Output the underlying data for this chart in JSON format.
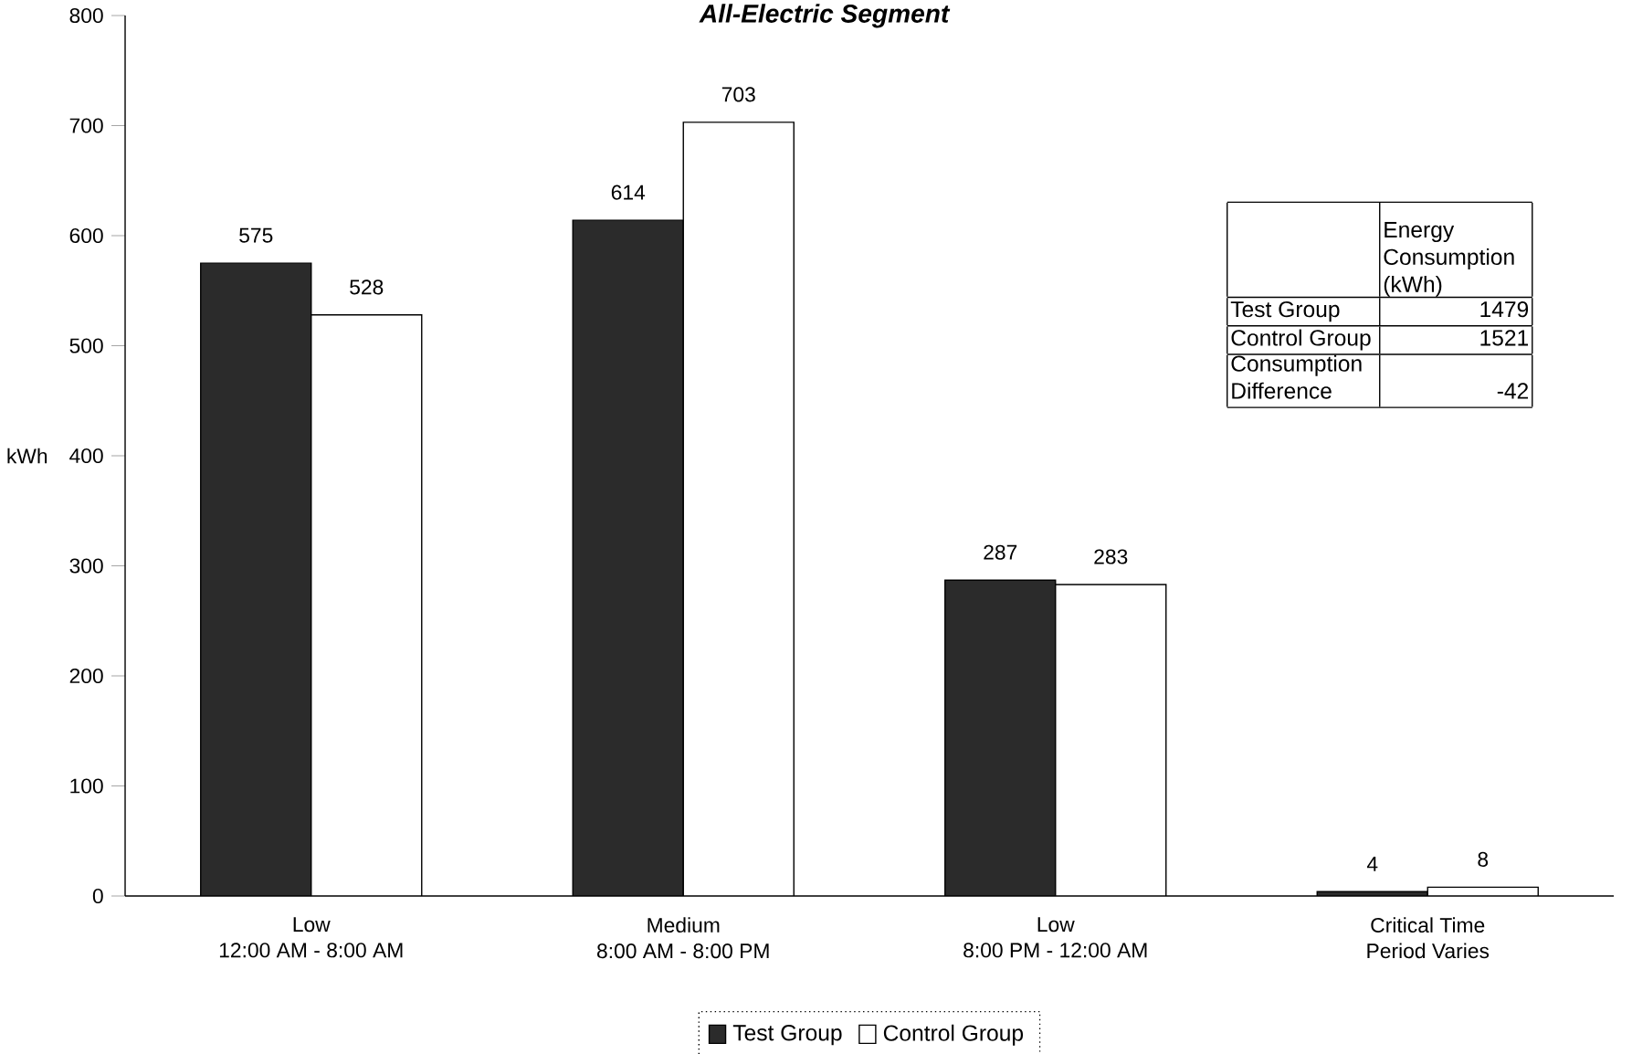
{
  "chart_data": {
    "type": "bar",
    "title": "*All-Electric Segment*",
    "ylabel": "kWh",
    "categories": [
      "Low\n12:00 AM - 8:00 AM",
      "Medium\n8:00 AM - 8:00 PM",
      "Low\n8:00 PM - 12:00 AM",
      "Critical Time\nPeriod Varies"
    ],
    "series": [
      {
        "name": "Test Group",
        "color": "#2b2b2b",
        "values": [
          575,
          614,
          287,
          4
        ]
      },
      {
        "name": "Control Group",
        "color": "#ffffff",
        "values": [
          528,
          703,
          283,
          8
        ]
      }
    ],
    "ylim": [
      0,
      800
    ],
    "yticks": [
      0,
      100,
      200,
      300,
      400,
      500,
      600,
      700,
      800
    ],
    "data_labels": true,
    "legend": "bottom",
    "grid": false,
    "annotations": [
      "Energy Consumption (kWh)",
      "Test Group",
      "1479",
      "Control Group",
      "1521",
      "Consumption Difference",
      "-42"
    ]
  }
}
